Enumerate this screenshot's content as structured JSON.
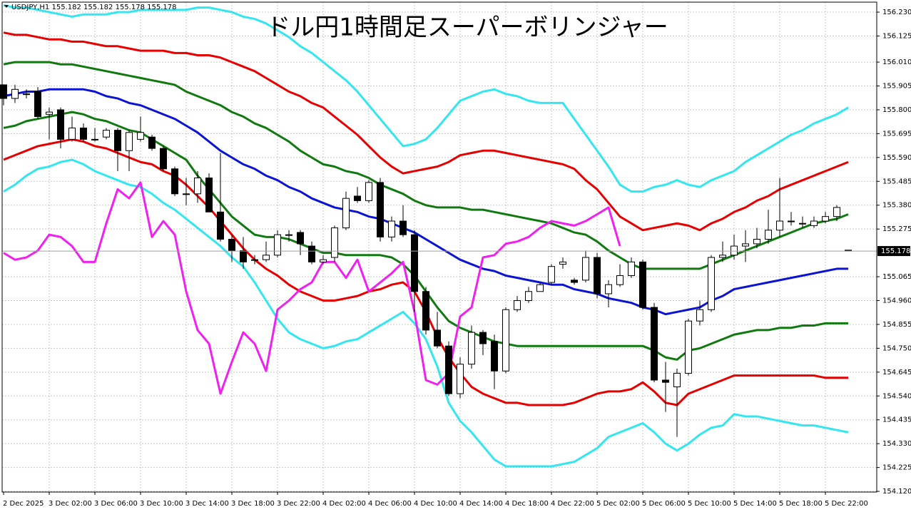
{
  "chart_data": {
    "type": "candlestick",
    "title": "ドル円1時間足スーパーボリンジャー",
    "symbol": "USDJPY,H1",
    "categories": [
      "2 Dec 2025",
      null,
      null,
      null,
      "3 Dec 02:00",
      null,
      null,
      null,
      "3 Dec 06:00",
      null,
      null,
      null,
      "3 Dec 10:00",
      null,
      null,
      null,
      "3 Dec 14:00",
      null,
      null,
      null,
      "3 Dec 18:00",
      null,
      null,
      null,
      "3 Dec 22:00",
      null,
      null,
      null,
      "4 Dec 02:00",
      null,
      null,
      null,
      "4 Dec 06:00",
      null,
      null,
      null,
      "4 Dec 10:00",
      null,
      null,
      null,
      "4 Dec 14:00",
      null,
      null,
      null,
      "4 Dec 18:00",
      null,
      null,
      null,
      "4 Dec 22:00",
      null,
      null,
      null,
      "5 Dec 02:00",
      null,
      null,
      null,
      "5 Dec 06:00",
      null,
      null,
      null,
      "5 Dec 10:00",
      null,
      null,
      null,
      "5 Dec 14:00",
      null,
      null,
      null,
      "5 Dec 18:00",
      null,
      null,
      null,
      "5 Dec 22:00",
      null,
      null
    ],
    "open": [
      155.91,
      155.85,
      155.87,
      155.88,
      155.78,
      155.8,
      155.67,
      155.72,
      155.67,
      155.68,
      155.71,
      155.62,
      155.67,
      155.68,
      155.63,
      155.54,
      155.43,
      155.43,
      155.5,
      155.35,
      155.23,
      155.18,
      155.14,
      155.14,
      155.16,
      155.25,
      155.26,
      155.2,
      155.13,
      155.15,
      155.28,
      155.42,
      155.4,
      155.48,
      155.24,
      155.31,
      155.25,
      155.0,
      154.83,
      154.76,
      154.55,
      154.68,
      154.82,
      154.78,
      154.65,
      154.92,
      154.96,
      155.0,
      155.04,
      155.12,
      155.05,
      155.05,
      155.15,
      154.99,
      155.03,
      155.07,
      155.13,
      154.93,
      154.61,
      154.58,
      154.64,
      154.87,
      154.92,
      155.15,
      155.16,
      155.2,
      155.21,
      155.23,
      155.27,
      155.31,
      155.3,
      155.29,
      155.31,
      155.33,
      155.182
    ],
    "high": [
      155.91,
      155.91,
      155.89,
      155.9,
      155.81,
      155.81,
      155.77,
      155.74,
      155.72,
      155.72,
      155.72,
      155.71,
      155.77,
      155.69,
      155.64,
      155.55,
      155.5,
      155.53,
      155.52,
      155.61,
      155.25,
      155.24,
      155.16,
      155.22,
      155.27,
      155.27,
      155.27,
      155.22,
      155.16,
      155.29,
      155.44,
      155.46,
      155.49,
      155.5,
      155.33,
      155.38,
      155.27,
      155.02,
      154.91,
      154.78,
      154.71,
      154.85,
      154.83,
      154.81,
      154.93,
      154.98,
      155.02,
      155.04,
      155.12,
      155.15,
      155.06,
      155.18,
      155.17,
      155.05,
      155.12,
      155.15,
      155.14,
      154.95,
      154.69,
      154.66,
      154.88,
      154.96,
      155.16,
      155.22,
      155.25,
      155.27,
      155.28,
      155.36,
      155.5,
      155.35,
      155.33,
      155.33,
      155.35,
      155.38,
      155.182
    ],
    "low": [
      155.82,
      155.83,
      155.85,
      155.76,
      155.67,
      155.63,
      155.66,
      155.66,
      155.66,
      155.67,
      155.53,
      155.53,
      155.66,
      155.62,
      155.53,
      155.42,
      155.38,
      155.39,
      155.35,
      155.22,
      155.13,
      155.1,
      155.12,
      155.13,
      155.15,
      155.22,
      155.16,
      155.12,
      155.12,
      155.13,
      155.27,
      155.39,
      155.39,
      155.22,
      155.22,
      155.24,
      154.91,
      154.81,
      154.75,
      154.54,
      154.53,
      154.66,
      154.72,
      154.57,
      154.64,
      154.91,
      154.95,
      155.0,
      155.03,
      155.1,
      155.03,
      155.04,
      154.97,
      154.93,
      155.02,
      155.06,
      154.92,
      154.6,
      154.47,
      154.36,
      154.63,
      154.85,
      154.91,
      155.13,
      155.14,
      155.13,
      155.19,
      155.21,
      155.24,
      155.29,
      155.28,
      155.28,
      155.3,
      155.31,
      155.178
    ],
    "close": [
      155.85,
      155.89,
      155.87,
      155.77,
      155.79,
      155.67,
      155.72,
      155.67,
      155.67,
      155.71,
      155.62,
      155.7,
      155.7,
      155.63,
      155.54,
      155.43,
      155.43,
      155.5,
      155.35,
      155.23,
      155.18,
      155.13,
      155.14,
      155.16,
      155.25,
      155.25,
      155.21,
      155.13,
      155.14,
      155.28,
      155.41,
      155.4,
      155.48,
      155.24,
      155.31,
      155.25,
      155.0,
      154.83,
      154.76,
      154.55,
      154.68,
      154.82,
      154.77,
      154.65,
      154.92,
      154.96,
      155.0,
      155.03,
      155.11,
      155.13,
      155.04,
      155.15,
      154.99,
      155.03,
      155.07,
      155.13,
      154.93,
      154.61,
      154.6,
      154.64,
      154.87,
      154.92,
      155.15,
      155.16,
      155.2,
      155.21,
      155.23,
      155.27,
      155.31,
      155.31,
      155.3,
      155.31,
      155.33,
      155.37,
      155.178
    ],
    "series": [
      {
        "color": "#33e6f0",
        "values": [
          156.26,
          156.25,
          156.25,
          156.24,
          156.23,
          156.22,
          156.21,
          156.22,
          156.22,
          156.22,
          156.23,
          156.23,
          156.24,
          156.24,
          156.24,
          156.24,
          156.24,
          156.25,
          156.25,
          156.24,
          156.23,
          156.21,
          156.2,
          156.18,
          156.15,
          156.12,
          156.08,
          156.05,
          156.01,
          155.97,
          155.93,
          155.88,
          155.82,
          155.76,
          155.7,
          155.64,
          155.65,
          155.67,
          155.72,
          155.78,
          155.84,
          155.86,
          155.88,
          155.89,
          155.87,
          155.86,
          155.84,
          155.83,
          155.83,
          155.83,
          155.76,
          155.69,
          155.62,
          155.55,
          155.47,
          155.44,
          155.44,
          155.46,
          155.47,
          155.49,
          155.47,
          155.46,
          155.49,
          155.51,
          155.53,
          155.57,
          155.6,
          155.63,
          155.66,
          155.69,
          155.71,
          155.74,
          155.76,
          155.78,
          155.81
        ]
      },
      {
        "color": "#e60000",
        "values": [
          156.14,
          156.13,
          156.13,
          156.12,
          156.11,
          156.11,
          156.1,
          156.1,
          156.09,
          156.08,
          156.08,
          156.07,
          156.06,
          156.06,
          156.06,
          156.05,
          156.05,
          156.04,
          156.04,
          156.03,
          156.01,
          155.99,
          155.97,
          155.94,
          155.91,
          155.88,
          155.86,
          155.83,
          155.81,
          155.77,
          155.73,
          155.69,
          155.64,
          155.59,
          155.55,
          155.52,
          155.53,
          155.54,
          155.55,
          155.57,
          155.6,
          155.61,
          155.62,
          155.62,
          155.61,
          155.6,
          155.59,
          155.58,
          155.57,
          155.56,
          155.54,
          155.49,
          155.45,
          155.39,
          155.33,
          155.3,
          155.27,
          155.28,
          155.29,
          155.3,
          155.29,
          155.27,
          155.3,
          155.32,
          155.35,
          155.37,
          155.4,
          155.42,
          155.45,
          155.47,
          155.49,
          155.51,
          155.53,
          155.55,
          155.57
        ]
      },
      {
        "color": "#107a10",
        "values": [
          156.0,
          156.01,
          156.01,
          156.01,
          156.01,
          156.0,
          156.0,
          155.99,
          155.98,
          155.97,
          155.96,
          155.95,
          155.94,
          155.93,
          155.92,
          155.91,
          155.88,
          155.86,
          155.84,
          155.82,
          155.79,
          155.77,
          155.74,
          155.72,
          155.69,
          155.66,
          155.62,
          155.59,
          155.56,
          155.55,
          155.53,
          155.52,
          155.5,
          155.47,
          155.45,
          155.43,
          155.4,
          155.38,
          155.37,
          155.37,
          155.37,
          155.36,
          155.36,
          155.35,
          155.34,
          155.33,
          155.32,
          155.31,
          155.3,
          155.28,
          155.26,
          155.25,
          155.22,
          155.18,
          155.15,
          155.12,
          155.1,
          155.1,
          155.1,
          155.1,
          155.1,
          155.1,
          155.12,
          155.14,
          155.16,
          155.18,
          155.2,
          155.22,
          155.24,
          155.26,
          155.28,
          155.3,
          155.31,
          155.32,
          155.34
        ]
      },
      {
        "color": "#0a14d2",
        "values": [
          155.86,
          155.87,
          155.88,
          155.88,
          155.89,
          155.89,
          155.89,
          155.89,
          155.88,
          155.86,
          155.85,
          155.83,
          155.82,
          155.8,
          155.78,
          155.76,
          155.73,
          155.7,
          155.66,
          155.62,
          155.59,
          155.56,
          155.54,
          155.51,
          155.49,
          155.46,
          155.44,
          155.41,
          155.39,
          155.37,
          155.36,
          155.35,
          155.33,
          155.32,
          155.3,
          155.28,
          155.26,
          155.23,
          155.2,
          155.17,
          155.14,
          155.12,
          155.1,
          155.09,
          155.07,
          155.06,
          155.05,
          155.04,
          155.03,
          155.03,
          155.01,
          155.0,
          154.99,
          154.97,
          154.96,
          154.95,
          154.93,
          154.92,
          154.9,
          154.91,
          154.92,
          154.93,
          154.96,
          154.98,
          155.01,
          155.02,
          155.03,
          155.04,
          155.05,
          155.06,
          155.07,
          155.08,
          155.09,
          155.1,
          155.1
        ]
      },
      {
        "color": "#107a10",
        "values": [
          155.72,
          155.73,
          155.75,
          155.76,
          155.77,
          155.78,
          155.79,
          155.78,
          155.76,
          155.75,
          155.73,
          155.71,
          155.7,
          155.67,
          155.64,
          155.61,
          155.58,
          155.51,
          155.45,
          155.39,
          155.33,
          155.29,
          155.25,
          155.24,
          155.24,
          155.23,
          155.21,
          155.19,
          155.17,
          155.17,
          155.16,
          155.16,
          155.16,
          155.16,
          155.15,
          155.12,
          155.07,
          155.0,
          154.93,
          154.87,
          154.84,
          154.82,
          154.8,
          154.78,
          154.77,
          154.76,
          154.76,
          154.76,
          154.76,
          154.76,
          154.76,
          154.76,
          154.76,
          154.76,
          154.76,
          154.76,
          154.76,
          154.74,
          154.71,
          154.7,
          154.74,
          154.75,
          154.77,
          154.79,
          154.81,
          154.82,
          154.83,
          154.83,
          154.84,
          154.84,
          154.85,
          154.85,
          154.86,
          154.86,
          154.86
        ]
      },
      {
        "color": "#e60000",
        "values": [
          155.58,
          155.6,
          155.62,
          155.64,
          155.65,
          155.66,
          155.67,
          155.66,
          155.64,
          155.63,
          155.61,
          155.59,
          155.57,
          155.56,
          155.53,
          155.51,
          155.47,
          155.42,
          155.37,
          155.31,
          155.25,
          155.19,
          155.14,
          155.1,
          155.07,
          155.03,
          155.0,
          154.98,
          154.96,
          154.96,
          154.97,
          154.98,
          155.0,
          155.01,
          155.03,
          155.04,
          155.0,
          154.91,
          154.8,
          154.71,
          154.64,
          154.58,
          154.55,
          154.53,
          154.51,
          154.51,
          154.5,
          154.5,
          154.5,
          154.5,
          154.51,
          154.53,
          154.55,
          154.56,
          154.56,
          154.57,
          154.6,
          154.56,
          154.51,
          154.5,
          154.55,
          154.57,
          154.59,
          154.61,
          154.63,
          154.63,
          154.63,
          154.63,
          154.63,
          154.63,
          154.63,
          154.63,
          154.62,
          154.62,
          154.62
        ]
      },
      {
        "color": "#33e6f0",
        "values": [
          155.44,
          155.47,
          155.51,
          155.54,
          155.55,
          155.57,
          155.58,
          155.56,
          155.53,
          155.51,
          155.49,
          155.47,
          155.46,
          155.43,
          155.39,
          155.36,
          155.32,
          155.28,
          155.24,
          155.2,
          155.15,
          155.11,
          155.04,
          154.96,
          154.88,
          154.82,
          154.79,
          154.77,
          154.75,
          154.76,
          154.78,
          154.79,
          154.82,
          154.85,
          154.88,
          154.91,
          154.86,
          154.79,
          154.67,
          154.51,
          154.43,
          154.38,
          154.32,
          154.26,
          154.23,
          154.23,
          154.23,
          154.23,
          154.23,
          154.24,
          154.25,
          154.28,
          154.31,
          154.36,
          154.38,
          154.4,
          154.42,
          154.38,
          154.33,
          154.3,
          154.33,
          154.37,
          154.4,
          154.41,
          154.46,
          154.45,
          154.45,
          154.44,
          154.43,
          154.42,
          154.41,
          154.41,
          154.4,
          154.39,
          154.38
        ]
      },
      {
        "color": "#f020f0",
        "values": [
          155.17,
          155.14,
          155.15,
          155.18,
          155.25,
          155.24,
          155.2,
          155.13,
          155.13,
          155.3,
          155.45,
          155.41,
          155.48,
          155.24,
          155.31,
          155.25,
          155.0,
          154.83,
          154.77,
          154.55,
          154.69,
          154.82,
          154.77,
          154.65,
          154.92,
          154.96,
          155.01,
          155.04,
          155.13,
          155.13,
          155.06,
          155.14,
          155.0,
          155.04,
          155.08,
          155.13,
          154.91,
          154.61,
          154.59,
          154.64,
          154.89,
          154.93,
          155.15,
          155.16,
          155.21,
          155.22,
          155.24,
          155.28,
          155.31,
          155.3,
          155.29,
          155.31,
          155.34,
          155.37,
          155.2,
          null,
          null,
          null,
          null,
          null,
          null,
          null,
          null,
          null,
          null,
          null,
          null,
          null,
          null,
          null,
          null,
          null,
          null,
          null,
          null
        ]
      }
    ],
    "ylim": [
      154.117,
      156.274
    ],
    "yticks": [
      {
        "value": 156.23,
        "label": "156.230"
      },
      {
        "value": 156.125,
        "label": "156.125"
      },
      {
        "value": 156.01,
        "label": "156.010"
      },
      {
        "value": 155.905,
        "label": "155.905"
      },
      {
        "value": 155.8,
        "label": "155.800"
      },
      {
        "value": 155.695,
        "label": "155.695"
      },
      {
        "value": 155.59,
        "label": "155.590"
      },
      {
        "value": 155.485,
        "label": "155.485"
      },
      {
        "value": 155.38,
        "label": "155.380"
      },
      {
        "value": 155.275,
        "label": "155.275"
      },
      {
        "value": 155.065,
        "label": "155.065"
      },
      {
        "value": 154.96,
        "label": "154.960"
      },
      {
        "value": 154.855,
        "label": "154.855"
      },
      {
        "value": 154.75,
        "label": "154.750"
      },
      {
        "value": 154.645,
        "label": "154.645"
      },
      {
        "value": 154.54,
        "label": "154.540"
      },
      {
        "value": 154.435,
        "label": "154.435"
      },
      {
        "value": 154.33,
        "label": "154.330"
      },
      {
        "value": 154.225,
        "label": "154.225"
      },
      {
        "value": 154.12,
        "label": "154.120"
      }
    ],
    "grid": true,
    "up_color": "#ffffff",
    "down_color": "#000000"
  }
}
